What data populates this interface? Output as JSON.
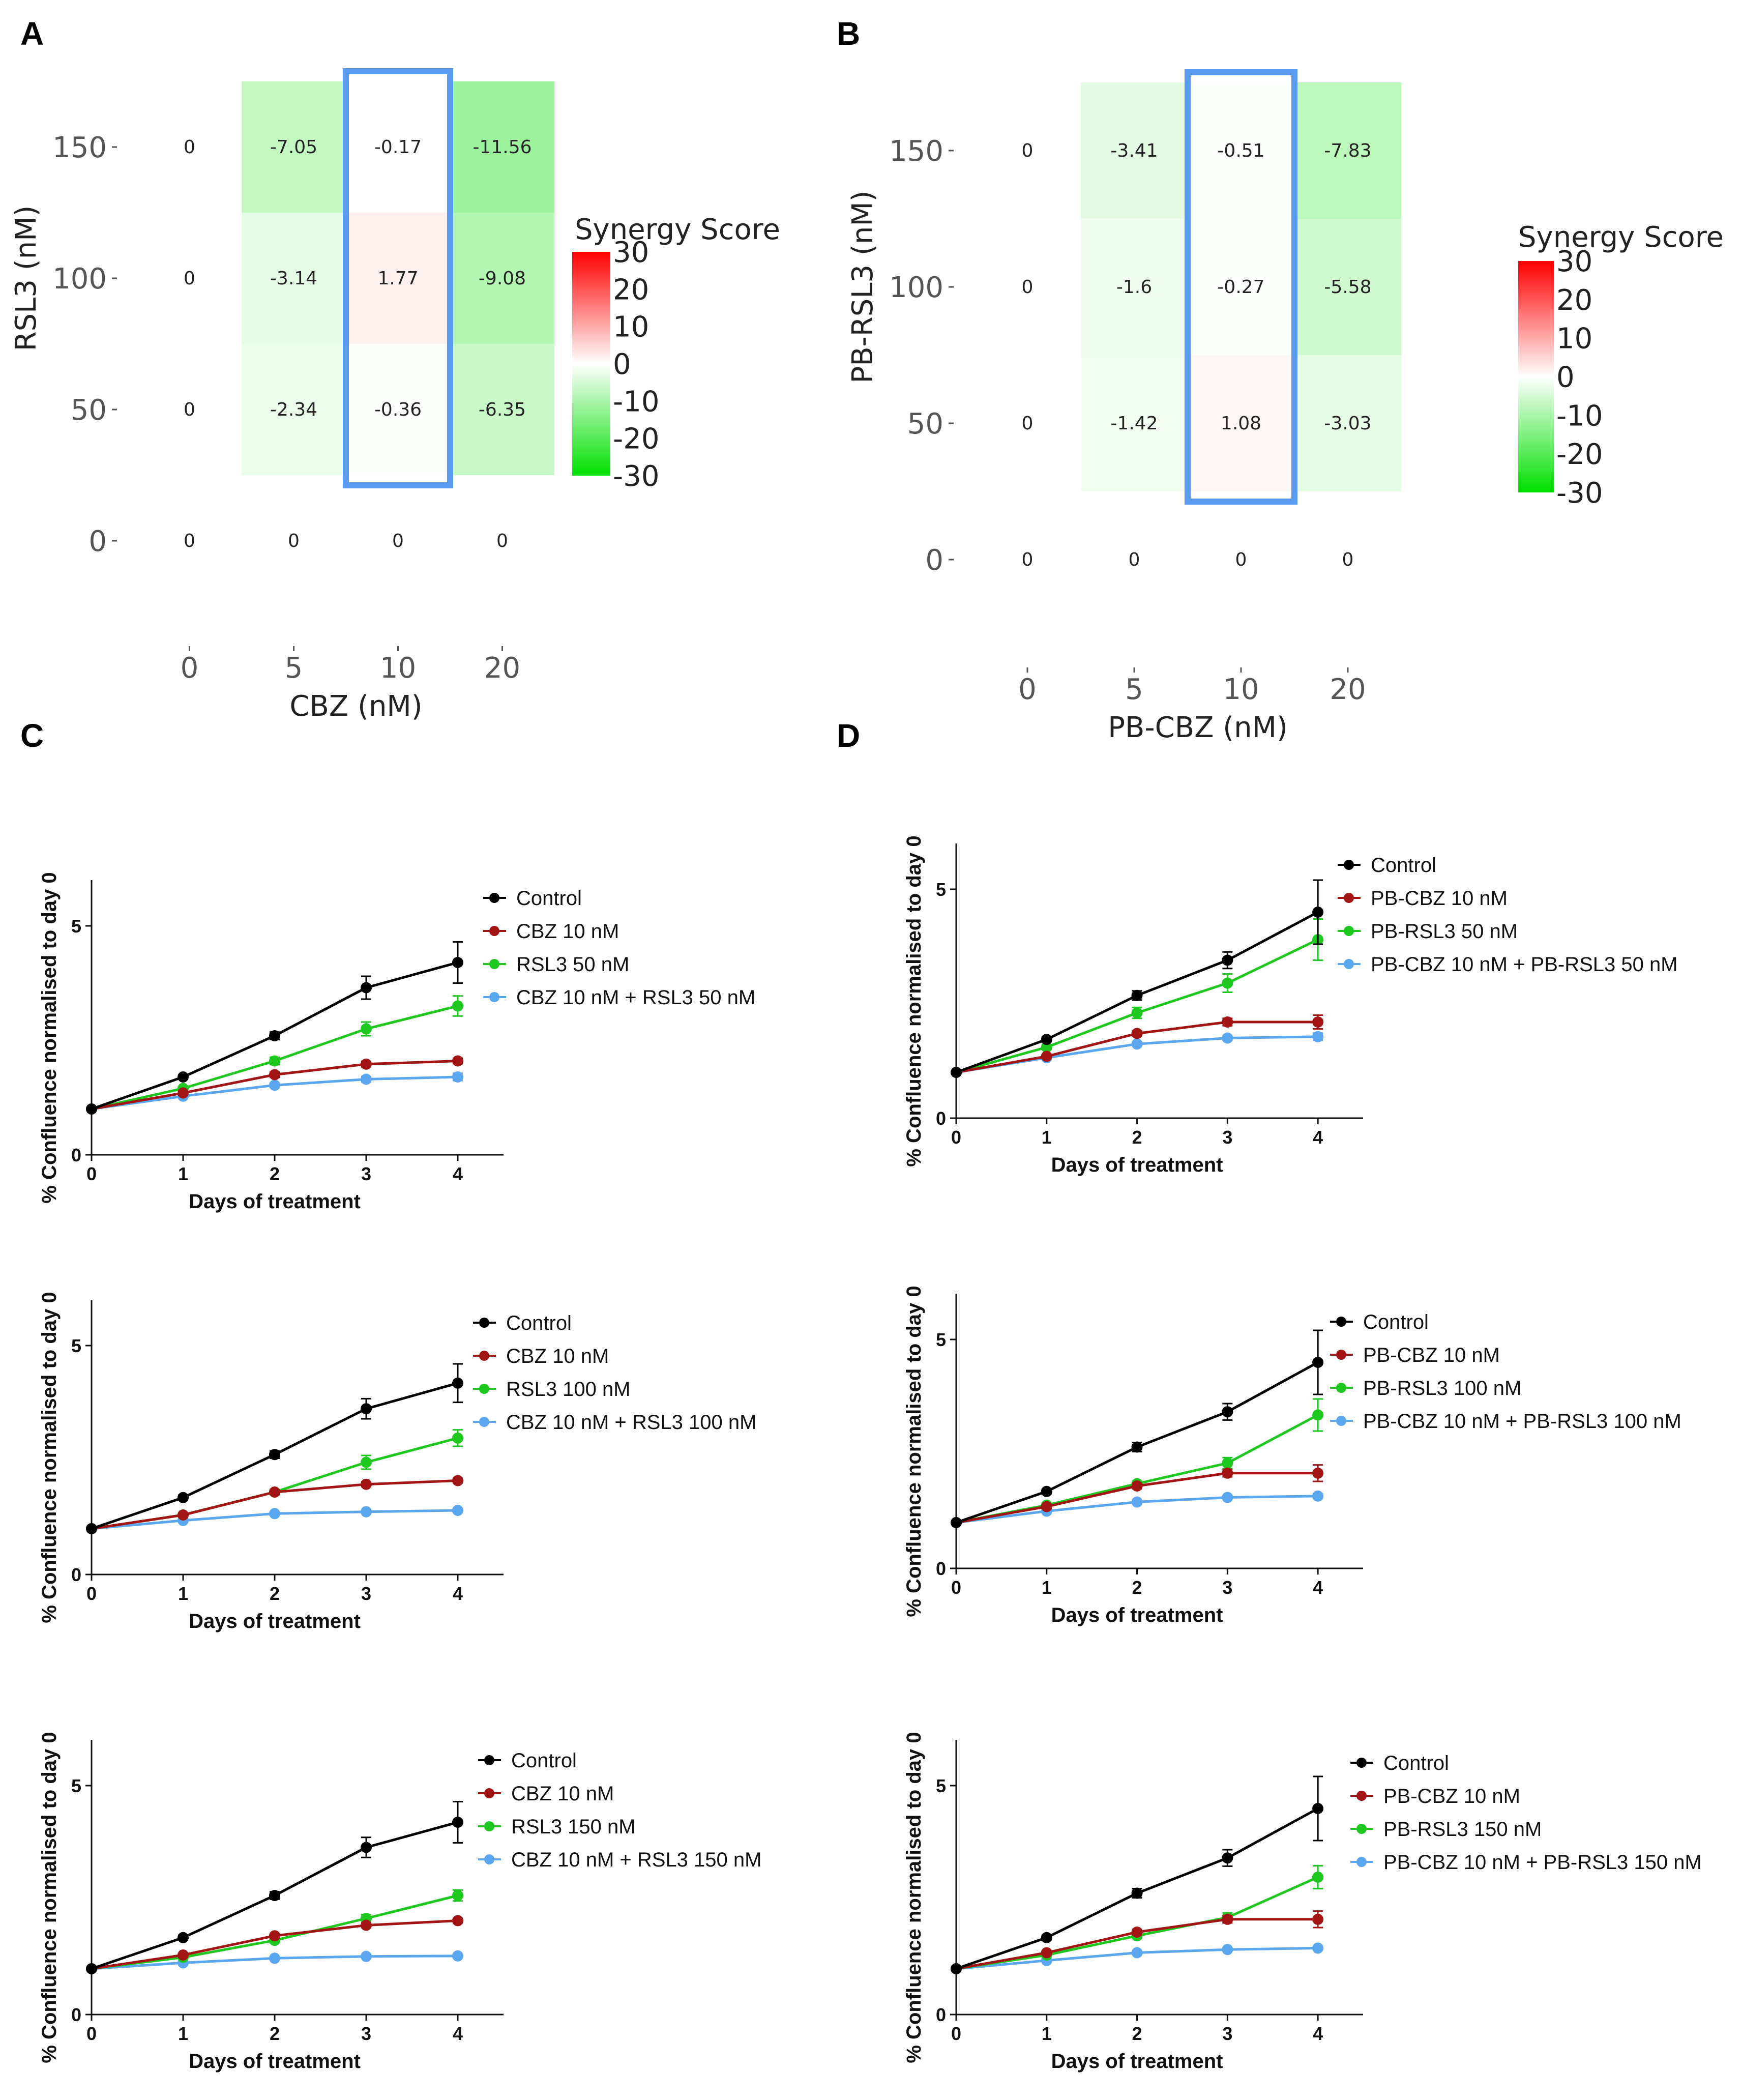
{
  "panel_labels": [
    "A",
    "B",
    "C",
    "D"
  ],
  "chart_data": [
    {
      "id": "A",
      "type": "heatmap",
      "x_label": "CBZ (nM)",
      "y_label": "RSL3 (nM)",
      "x_ticks": [
        "0",
        "5",
        "10",
        "20"
      ],
      "y_ticks": [
        "150",
        "100",
        "50",
        "0"
      ],
      "values": [
        [
          "0",
          "-7.05",
          "-0.17",
          "-11.56"
        ],
        [
          "0",
          "-3.14",
          "1.77",
          "-9.08"
        ],
        [
          "0",
          "-2.34",
          "-0.36",
          "-6.35"
        ],
        [
          "0",
          "0",
          "0",
          "0"
        ]
      ],
      "highlight_column": "10",
      "legend_title": "Synergy Score",
      "legend_ticks": [
        "30",
        "20",
        "10",
        "0",
        "-10",
        "-20",
        "-30"
      ],
      "legend_range": [
        -30,
        30
      ],
      "colors": {
        "positive": "#ff0000",
        "neutral": "#ffffff",
        "negative": "#00e000",
        "highlight": "#5b9bef"
      }
    },
    {
      "id": "B",
      "type": "heatmap",
      "x_label": "PB-CBZ (nM)",
      "y_label": "PB-RSL3 (nM)",
      "x_ticks": [
        "0",
        "5",
        "10",
        "20"
      ],
      "y_ticks": [
        "150",
        "100",
        "50",
        "0"
      ],
      "values": [
        [
          "0",
          "-3.41",
          "-0.51",
          "-7.83"
        ],
        [
          "0",
          "-1.6",
          "-0.27",
          "-5.58"
        ],
        [
          "0",
          "-1.42",
          "1.08",
          "-3.03"
        ],
        [
          "0",
          "0",
          "0",
          "0"
        ]
      ],
      "highlight_column": "10",
      "legend_title": "Synergy Score",
      "legend_ticks": [
        "30",
        "20",
        "10",
        "0",
        "-10",
        "-20",
        "-30"
      ],
      "legend_range": [
        -30,
        30
      ],
      "colors": {
        "positive": "#ff0000",
        "neutral": "#ffffff",
        "negative": "#00e000",
        "highlight": "#5b9bef"
      }
    },
    {
      "id": "C1",
      "type": "line",
      "xlabel": "Days of treatment",
      "ylabel": "% Confluence normalised to day 0",
      "x": [
        0,
        1,
        2,
        3,
        4
      ],
      "x_ticks": [
        "0",
        "1",
        "2",
        "3",
        "4"
      ],
      "y_ticks": [
        "0",
        "5"
      ],
      "ylim": [
        0,
        6
      ],
      "xlim": [
        0,
        4.5
      ],
      "series": [
        {
          "name": "Control",
          "color": "#000000",
          "values": [
            1.0,
            1.7,
            2.6,
            3.65,
            4.2
          ],
          "errors": [
            0,
            0.05,
            0.08,
            0.25,
            0.45
          ]
        },
        {
          "name": "CBZ 10 nM",
          "color": "#a31515",
          "values": [
            1.0,
            1.35,
            1.75,
            1.98,
            2.05
          ],
          "errors": [
            0,
            0.04,
            0.06,
            0.06,
            0.06
          ]
        },
        {
          "name": "RSL3 50 nM",
          "color": "#1ec81e",
          "values": [
            1.0,
            1.45,
            2.05,
            2.75,
            3.25
          ],
          "errors": [
            0,
            0.04,
            0.08,
            0.15,
            0.22
          ]
        },
        {
          "name": "CBZ 10 nM + RSL3 50 nM",
          "color": "#5aa7f0",
          "values": [
            1.0,
            1.28,
            1.52,
            1.65,
            1.7
          ],
          "errors": [
            0,
            0.03,
            0.05,
            0.06,
            0.08
          ]
        }
      ]
    },
    {
      "id": "C2",
      "type": "line",
      "xlabel": "Days of treatment",
      "ylabel": "% Confluence normalised to day 0",
      "x": [
        0,
        1,
        2,
        3,
        4
      ],
      "x_ticks": [
        "0",
        "1",
        "2",
        "3",
        "4"
      ],
      "y_ticks": [
        "0",
        "5"
      ],
      "ylim": [
        0,
        6
      ],
      "xlim": [
        0,
        4.5
      ],
      "series": [
        {
          "name": "Control",
          "color": "#000000",
          "values": [
            1.0,
            1.68,
            2.62,
            3.62,
            4.18
          ],
          "errors": [
            0,
            0.05,
            0.08,
            0.22,
            0.42
          ]
        },
        {
          "name": "CBZ 10 nM",
          "color": "#a31515",
          "values": [
            1.0,
            1.3,
            1.8,
            1.97,
            2.05
          ],
          "errors": [
            0,
            0.03,
            0.05,
            0.05,
            0.05
          ]
        },
        {
          "name": "RSL3 100 nM",
          "color": "#1ec81e",
          "values": [
            1.0,
            1.3,
            1.8,
            2.45,
            2.98
          ],
          "errors": [
            0,
            0.03,
            0.06,
            0.15,
            0.18
          ]
        },
        {
          "name": "CBZ 10 nM + RSL3 100 nM",
          "color": "#5aa7f0",
          "values": [
            1.0,
            1.18,
            1.33,
            1.37,
            1.4
          ],
          "errors": [
            0,
            0.02,
            0.03,
            0.03,
            0.03
          ]
        }
      ]
    },
    {
      "id": "C3",
      "type": "line",
      "xlabel": "Days of treatment",
      "ylabel": "% Confluence normalised to day 0",
      "x": [
        0,
        1,
        2,
        3,
        4
      ],
      "x_ticks": [
        "0",
        "1",
        "2",
        "3",
        "4"
      ],
      "y_ticks": [
        "0",
        "5"
      ],
      "ylim": [
        0,
        6
      ],
      "xlim": [
        0,
        4.5
      ],
      "series": [
        {
          "name": "Control",
          "color": "#000000",
          "values": [
            1.0,
            1.68,
            2.6,
            3.65,
            4.2
          ],
          "errors": [
            0,
            0.05,
            0.08,
            0.22,
            0.45
          ]
        },
        {
          "name": "CBZ 10 nM",
          "color": "#a31515",
          "values": [
            1.0,
            1.3,
            1.72,
            1.95,
            2.05
          ],
          "errors": [
            0,
            0.03,
            0.05,
            0.05,
            0.05
          ]
        },
        {
          "name": "RSL3 150 nM",
          "color": "#1ec81e",
          "values": [
            1.0,
            1.25,
            1.62,
            2.1,
            2.6
          ],
          "errors": [
            0,
            0.03,
            0.05,
            0.08,
            0.12
          ]
        },
        {
          "name": "CBZ 10 nM + RSL3 150 nM",
          "color": "#5aa7f0",
          "values": [
            1.0,
            1.13,
            1.23,
            1.27,
            1.28
          ],
          "errors": [
            0,
            0.02,
            0.02,
            0.02,
            0.02
          ]
        }
      ]
    },
    {
      "id": "D1",
      "type": "line",
      "xlabel": "Days of treatment",
      "ylabel": "% Confluence normalised to day 0",
      "x": [
        0,
        1,
        2,
        3,
        4
      ],
      "x_ticks": [
        "0",
        "1",
        "2",
        "3",
        "4"
      ],
      "y_ticks": [
        "0",
        "5"
      ],
      "ylim": [
        0,
        6
      ],
      "xlim": [
        0,
        4.5
      ],
      "series": [
        {
          "name": "Control",
          "color": "#000000",
          "values": [
            1.0,
            1.72,
            2.68,
            3.45,
            4.5
          ],
          "errors": [
            0,
            0.05,
            0.1,
            0.18,
            0.7
          ]
        },
        {
          "name": "PB-CBZ 10 nM",
          "color": "#a31515",
          "values": [
            1.0,
            1.35,
            1.85,
            2.1,
            2.1
          ],
          "errors": [
            0,
            0.04,
            0.06,
            0.08,
            0.15
          ]
        },
        {
          "name": "PB-RSL3 50 nM",
          "color": "#1ec81e",
          "values": [
            1.0,
            1.55,
            2.3,
            2.95,
            3.9
          ],
          "errors": [
            0,
            0.05,
            0.12,
            0.2,
            0.45
          ]
        },
        {
          "name": "PB-CBZ 10 nM + PB-RSL3 50 nM",
          "color": "#5aa7f0",
          "values": [
            1.0,
            1.32,
            1.62,
            1.75,
            1.78
          ],
          "errors": [
            0,
            0.03,
            0.04,
            0.05,
            0.08
          ]
        }
      ]
    },
    {
      "id": "D2",
      "type": "line",
      "xlabel": "Days of treatment",
      "ylabel": "% Confluence normalised to day 0",
      "x": [
        0,
        1,
        2,
        3,
        4
      ],
      "x_ticks": [
        "0",
        "1",
        "2",
        "3",
        "4"
      ],
      "y_ticks": [
        "0",
        "5"
      ],
      "ylim": [
        0,
        6
      ],
      "xlim": [
        0,
        4.5
      ],
      "series": [
        {
          "name": "Control",
          "color": "#000000",
          "values": [
            1.0,
            1.68,
            2.65,
            3.42,
            4.5
          ],
          "errors": [
            0,
            0.05,
            0.1,
            0.18,
            0.7
          ]
        },
        {
          "name": "PB-CBZ 10 nM",
          "color": "#a31515",
          "values": [
            1.0,
            1.35,
            1.8,
            2.08,
            2.08
          ],
          "errors": [
            0,
            0.04,
            0.06,
            0.08,
            0.18
          ]
        },
        {
          "name": "PB-RSL3 100 nM",
          "color": "#1ec81e",
          "values": [
            1.0,
            1.38,
            1.85,
            2.3,
            3.35
          ],
          "errors": [
            0,
            0.04,
            0.06,
            0.12,
            0.35
          ]
        },
        {
          "name": "PB-CBZ 10 nM + PB-RSL3 100 nM",
          "color": "#5aa7f0",
          "values": [
            1.0,
            1.25,
            1.45,
            1.55,
            1.58
          ],
          "errors": [
            0,
            0.03,
            0.04,
            0.04,
            0.05
          ]
        }
      ]
    },
    {
      "id": "D3",
      "type": "line",
      "xlabel": "Days of treatment",
      "ylabel": "% Confluence normalised to day 0",
      "x": [
        0,
        1,
        2,
        3,
        4
      ],
      "x_ticks": [
        "0",
        "1",
        "2",
        "3",
        "4"
      ],
      "y_ticks": [
        "0",
        "5"
      ],
      "ylim": [
        0,
        6
      ],
      "xlim": [
        0,
        4.5
      ],
      "series": [
        {
          "name": "Control",
          "color": "#000000",
          "values": [
            1.0,
            1.68,
            2.65,
            3.42,
            4.5
          ],
          "errors": [
            0,
            0.05,
            0.1,
            0.18,
            0.7
          ]
        },
        {
          "name": "PB-CBZ 10 nM",
          "color": "#a31515",
          "values": [
            1.0,
            1.35,
            1.8,
            2.08,
            2.08
          ],
          "errors": [
            0,
            0.04,
            0.06,
            0.08,
            0.18
          ]
        },
        {
          "name": "PB-RSL3 150 nM",
          "color": "#1ec81e",
          "values": [
            1.0,
            1.3,
            1.72,
            2.12,
            3.0
          ],
          "errors": [
            0,
            0.04,
            0.06,
            0.1,
            0.25
          ]
        },
        {
          "name": "PB-CBZ 10 nM + PB-RSL3 150 nM",
          "color": "#5aa7f0",
          "values": [
            1.0,
            1.18,
            1.35,
            1.42,
            1.45
          ],
          "errors": [
            0,
            0.02,
            0.03,
            0.03,
            0.03
          ]
        }
      ]
    }
  ]
}
